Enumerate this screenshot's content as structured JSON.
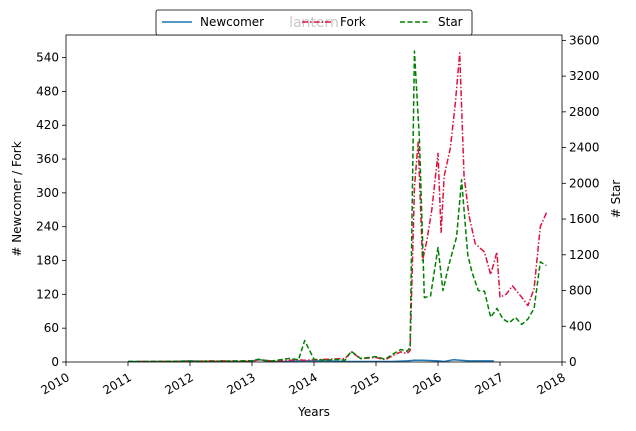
{
  "chart_data": {
    "type": "line",
    "title": "lantern",
    "xlabel": "Years",
    "ylabel_left": "# Newcomer / Fork",
    "ylabel_right": "# Star",
    "xlim": [
      2010,
      2018
    ],
    "ylim_left": [
      0,
      580
    ],
    "ylim_right": [
      0,
      3660
    ],
    "x_ticks": [
      2010,
      2011,
      2012,
      2013,
      2014,
      2015,
      2016,
      2017,
      2018
    ],
    "y_left_ticks": [
      0,
      60,
      120,
      180,
      240,
      300,
      360,
      420,
      480,
      540
    ],
    "y_right_ticks": [
      0,
      400,
      800,
      1200,
      1600,
      2000,
      2400,
      2800,
      3200,
      3600
    ],
    "legend_position": "top-center",
    "series": [
      {
        "name": "Newcomer",
        "axis": "left",
        "color": "#1f77b4",
        "style": "solid",
        "x": [
          2011.0,
          2011.25,
          2011.5,
          2011.75,
          2012.0,
          2012.25,
          2012.5,
          2012.75,
          2013.0,
          2013.1,
          2013.25,
          2013.5,
          2013.75,
          2014.0,
          2014.25,
          2014.5,
          2014.75,
          2015.0,
          2015.25,
          2015.5,
          2015.6,
          2015.75,
          2016.0,
          2016.1,
          2016.25,
          2016.5,
          2016.75,
          2016.9
        ],
        "y": [
          1,
          1,
          1,
          1,
          2,
          1,
          1,
          1,
          1,
          5,
          1,
          1,
          2,
          2,
          2,
          1,
          1,
          1,
          1,
          2,
          3,
          3,
          2,
          1,
          4,
          2,
          2,
          2
        ]
      },
      {
        "name": "Fork",
        "axis": "left",
        "color": "#dc143c",
        "style": "dashdot",
        "x": [
          2011.0,
          2011.3,
          2011.6,
          2012.0,
          2012.3,
          2012.6,
          2013.0,
          2013.1,
          2013.3,
          2013.6,
          2013.75,
          2013.85,
          2014.0,
          2014.25,
          2014.5,
          2014.6,
          2014.75,
          2015.0,
          2015.15,
          2015.25,
          2015.4,
          2015.5,
          2015.55,
          2015.62,
          2015.68,
          2015.75,
          2015.82,
          2015.9,
          2016.0,
          2016.05,
          2016.1,
          2016.2,
          2016.28,
          2016.35,
          2016.42,
          2016.5,
          2016.6,
          2016.75,
          2016.85,
          2016.95,
          2017.0,
          2017.1,
          2017.2,
          2017.35,
          2017.45,
          2017.55,
          2017.65,
          2017.75
        ],
        "y": [
          0,
          1,
          1,
          1,
          2,
          2,
          1,
          4,
          2,
          3,
          4,
          3,
          4,
          5,
          6,
          18,
          6,
          8,
          4,
          10,
          18,
          15,
          20,
          310,
          390,
          180,
          215,
          270,
          370,
          230,
          330,
          380,
          460,
          548,
          330,
          260,
          210,
          195,
          155,
          195,
          115,
          120,
          135,
          115,
          100,
          130,
          240,
          265
        ]
      },
      {
        "name": "Star",
        "axis": "right",
        "color": "#008000",
        "style": "dashed",
        "x": [
          2011.0,
          2011.3,
          2011.6,
          2012.0,
          2012.3,
          2012.6,
          2013.0,
          2013.1,
          2013.3,
          2013.6,
          2013.75,
          2013.85,
          2014.0,
          2014.2,
          2014.35,
          2014.5,
          2014.6,
          2014.75,
          2015.0,
          2015.15,
          2015.25,
          2015.4,
          2015.5,
          2015.55,
          2015.62,
          2015.7,
          2015.78,
          2015.88,
          2016.0,
          2016.08,
          2016.18,
          2016.3,
          2016.38,
          2016.48,
          2016.55,
          2016.65,
          2016.75,
          2016.85,
          2016.95,
          2017.05,
          2017.15,
          2017.25,
          2017.35,
          2017.45,
          2017.55,
          2017.65,
          2017.75
        ],
        "y": [
          5,
          5,
          8,
          10,
          8,
          10,
          15,
          30,
          10,
          40,
          25,
          240,
          30,
          20,
          30,
          20,
          120,
          40,
          60,
          30,
          80,
          140,
          120,
          160,
          3480,
          2500,
          720,
          740,
          1280,
          800,
          1100,
          1400,
          2040,
          1200,
          1000,
          800,
          790,
          500,
          600,
          480,
          440,
          500,
          420,
          480,
          600,
          1120,
          1080
        ]
      }
    ]
  }
}
